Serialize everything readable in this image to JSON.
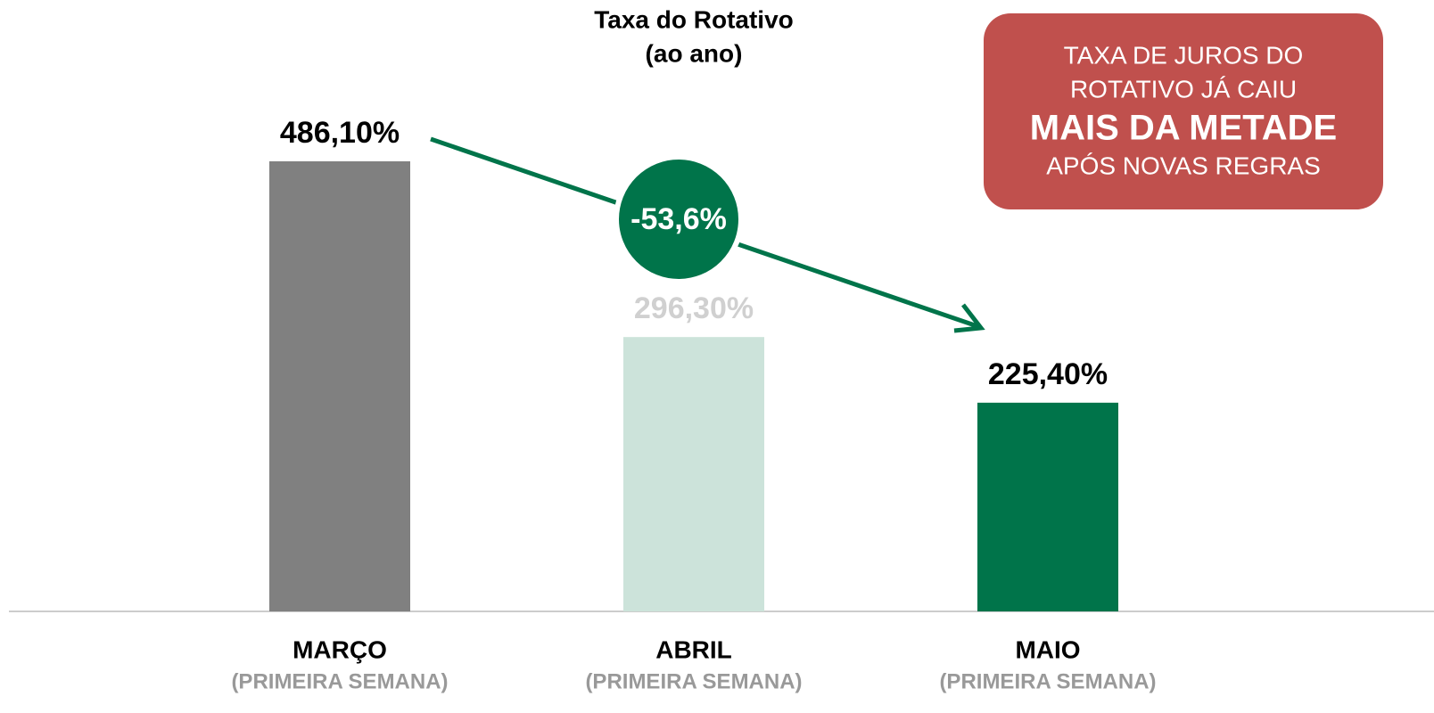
{
  "chart_data": {
    "type": "bar",
    "title": "Taxa do Rotativo",
    "subtitle": "(ao ano)",
    "categories": [
      "MARÇO",
      "ABRIL",
      "MAIO"
    ],
    "category_sublabels": [
      "(PRIMEIRA SEMANA)",
      "(PRIMEIRA SEMANA)",
      "(PRIMEIRA SEMANA)"
    ],
    "values": [
      486.1,
      296.3,
      225.4
    ],
    "value_labels": [
      "486,10%",
      "296,30%",
      "225,40%"
    ],
    "colors": [
      "#808080",
      "#cce3da",
      "#00744a"
    ],
    "value_label_colors": [
      "#000000",
      "#d0d0d0",
      "#000000"
    ],
    "change": {
      "value": -53.6,
      "label": "-53,6%"
    },
    "callout": [
      "TAXA DE JUROS DO",
      "ROTATIVO JÁ CAIU",
      "MAIS DA METADE",
      "APÓS NOVAS REGRAS"
    ]
  }
}
